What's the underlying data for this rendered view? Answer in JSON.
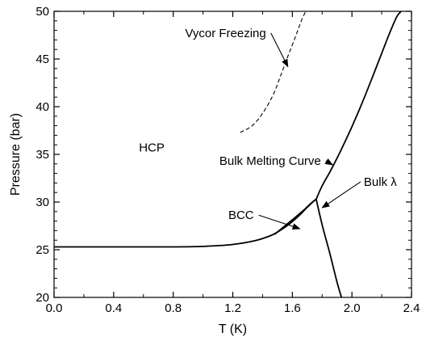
{
  "chart_data": {
    "type": "line",
    "title": "",
    "xlabel": "T (K)",
    "ylabel": "Pressure (bar)",
    "xlim": [
      0.0,
      2.4
    ],
    "ylim": [
      20,
      50
    ],
    "xticks": [
      0.0,
      0.4,
      0.8,
      1.2,
      1.6,
      2.0,
      2.4
    ],
    "xtick_labels": [
      "0.0",
      "0.4",
      "0.8",
      "1.2",
      "1.6",
      "2.0",
      "2.4"
    ],
    "yticks": [
      20,
      25,
      30,
      35,
      40,
      45,
      50
    ],
    "ytick_labels": [
      "20",
      "25",
      "30",
      "35",
      "40",
      "45",
      "50"
    ],
    "grid": false,
    "legend": "none",
    "series": [
      {
        "style": "solid",
        "x": [
          0.0,
          0.4,
          0.8,
          1.0,
          1.2,
          1.35,
          1.45,
          1.5,
          1.55,
          1.6,
          1.65,
          1.7,
          1.74,
          1.76
        ],
        "y": [
          25.3,
          25.3,
          25.3,
          25.35,
          25.55,
          25.95,
          26.45,
          26.85,
          27.35,
          27.95,
          28.65,
          29.45,
          30.05,
          30.3
        ]
      },
      {
        "style": "solid",
        "x": [
          1.48,
          1.55,
          1.62,
          1.68,
          1.72,
          1.76
        ],
        "y": [
          26.6,
          27.5,
          28.4,
          29.2,
          29.8,
          30.3
        ]
      },
      {
        "style": "solid",
        "x": [
          1.76,
          1.8,
          1.85,
          1.9,
          1.95,
          2.0,
          2.05,
          2.1,
          2.15,
          2.2,
          2.25,
          2.3,
          2.33
        ],
        "y": [
          30.3,
          31.7,
          33.1,
          34.6,
          36.2,
          37.9,
          39.7,
          41.6,
          43.6,
          45.6,
          47.6,
          49.4,
          50.0
        ]
      },
      {
        "style": "solid",
        "x": [
          1.76,
          1.8,
          1.85,
          1.9,
          1.93
        ],
        "y": [
          30.3,
          27.6,
          24.7,
          21.6,
          20.0
        ]
      },
      {
        "style": "dashed",
        "x": [
          1.25,
          1.33,
          1.4,
          1.47,
          1.52,
          1.57,
          1.62,
          1.66,
          1.69
        ],
        "y": [
          37.3,
          38.0,
          39.3,
          41.2,
          43.2,
          45.3,
          47.3,
          49.0,
          50.0
        ]
      }
    ],
    "annotations": [
      {
        "text": "Vycor Freezing",
        "x": 0.88,
        "y": 47.3,
        "arrow_to": [
          1.57,
          44.2
        ]
      },
      {
        "text": "HCP",
        "x": 0.57,
        "y": 35.3
      },
      {
        "text": "Bulk Melting Curve",
        "x": 1.11,
        "y": 33.9,
        "arrow_to": [
          1.87,
          33.9
        ]
      },
      {
        "text": "BCC",
        "x": 1.17,
        "y": 28.2,
        "arrow_to": [
          1.65,
          27.2
        ]
      },
      {
        "text": "Bulk λ",
        "x": 2.08,
        "y": 31.7,
        "arrow_to": [
          1.8,
          29.4
        ]
      }
    ]
  }
}
